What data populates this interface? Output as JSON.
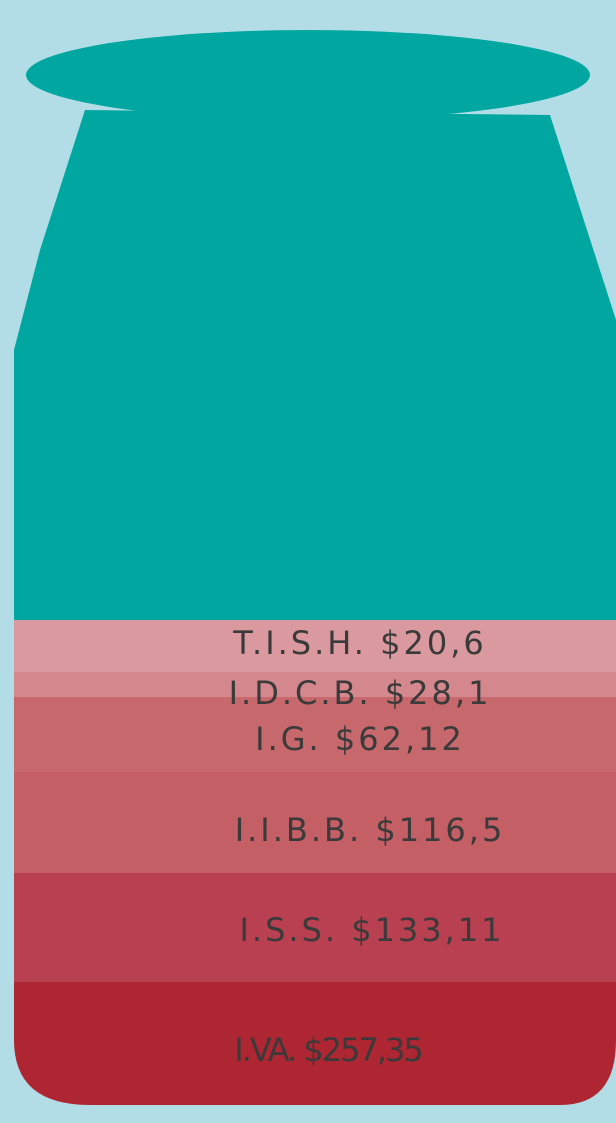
{
  "layers": [
    {
      "label": "T.I.S.H. $20,6"
    },
    {
      "label": "I.D.C.B. $28,1"
    },
    {
      "label": "I.G. $62,12"
    },
    {
      "label": "I.I.B.B. $116,5"
    },
    {
      "label": "I.S.S. $133,11"
    },
    {
      "label": "I.VA. $257,35"
    }
  ]
}
